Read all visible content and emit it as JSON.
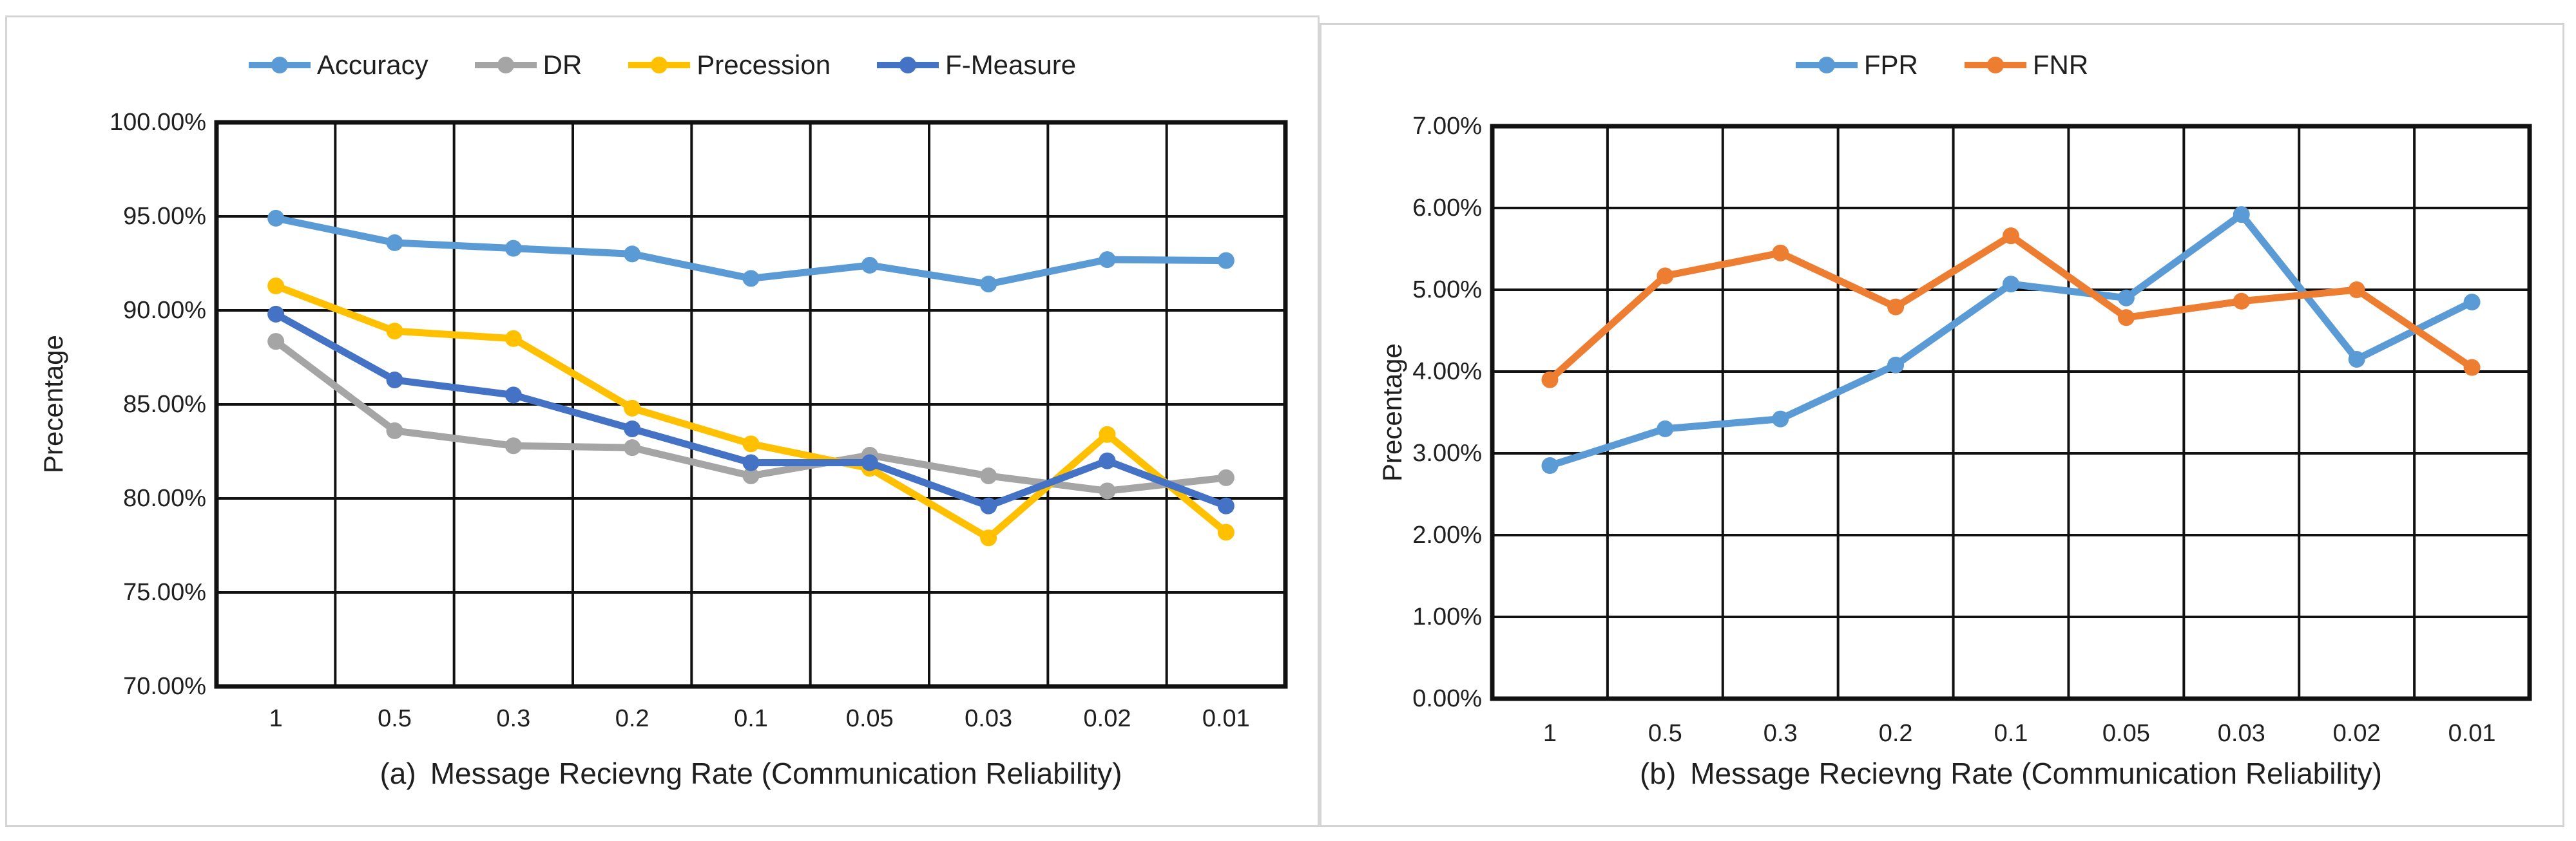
{
  "page": {
    "background": "#ffffff",
    "card_border_color": "#d5d5d5",
    "gridline_color": "#111111",
    "text_color": "#1f1f1f"
  },
  "chart_data": [
    {
      "type": "line",
      "caption_prefix": "(a)",
      "caption_text": "Message Recievng Rate (Communication Reliability)",
      "ylabel": "Precentage",
      "legend_position": "top",
      "grid": true,
      "categories": [
        "1",
        "0.5",
        "0.3",
        "0.2",
        "0.1",
        "0.05",
        "0.03",
        "0.02",
        "0.01"
      ],
      "y_ticks": [
        "100.00%",
        "95.00%",
        "90.00%",
        "85.00%",
        "80.00%",
        "75.00%",
        "70.00%"
      ],
      "ylim": [
        70,
        100
      ],
      "series": [
        {
          "name": "Accuracy",
          "color": "#5B9BD5",
          "values": [
            94.9,
            93.6,
            93.3,
            93.0,
            91.7,
            92.4,
            91.4,
            92.7,
            92.65
          ]
        },
        {
          "name": "DR",
          "color": "#A5A5A5",
          "values": [
            88.35,
            83.6,
            82.8,
            82.7,
            81.2,
            82.3,
            81.2,
            80.4,
            81.1
          ]
        },
        {
          "name": "Precession",
          "color": "#FFC000",
          "values": [
            91.3,
            88.9,
            88.5,
            84.8,
            82.9,
            81.6,
            77.9,
            83.4,
            78.2
          ]
        },
        {
          "name": "F-Measure",
          "color": "#4472C4",
          "values": [
            89.8,
            86.3,
            85.5,
            83.7,
            81.9,
            81.9,
            79.6,
            82.0,
            79.6
          ]
        }
      ]
    },
    {
      "type": "line",
      "caption_prefix": "(b)",
      "caption_text": "Message Recievng Rate (Communication Reliability)",
      "ylabel": "Precentage",
      "legend_position": "top",
      "grid": true,
      "categories": [
        "1",
        "0.5",
        "0.3",
        "0.2",
        "0.1",
        "0.05",
        "0.03",
        "0.02",
        "0.01"
      ],
      "y_ticks": [
        "7.00%",
        "6.00%",
        "5.00%",
        "4.00%",
        "3.00%",
        "2.00%",
        "1.00%",
        "0.00%"
      ],
      "ylim": [
        0,
        7
      ],
      "series": [
        {
          "name": "FPR",
          "color": "#5B9BD5",
          "values": [
            2.85,
            3.3,
            3.42,
            4.08,
            5.07,
            4.9,
            5.92,
            4.15,
            4.85
          ]
        },
        {
          "name": "FNR",
          "color": "#ED7D31",
          "values": [
            3.9,
            5.17,
            5.45,
            4.79,
            5.66,
            4.66,
            4.86,
            5.0,
            4.05
          ]
        }
      ]
    }
  ]
}
